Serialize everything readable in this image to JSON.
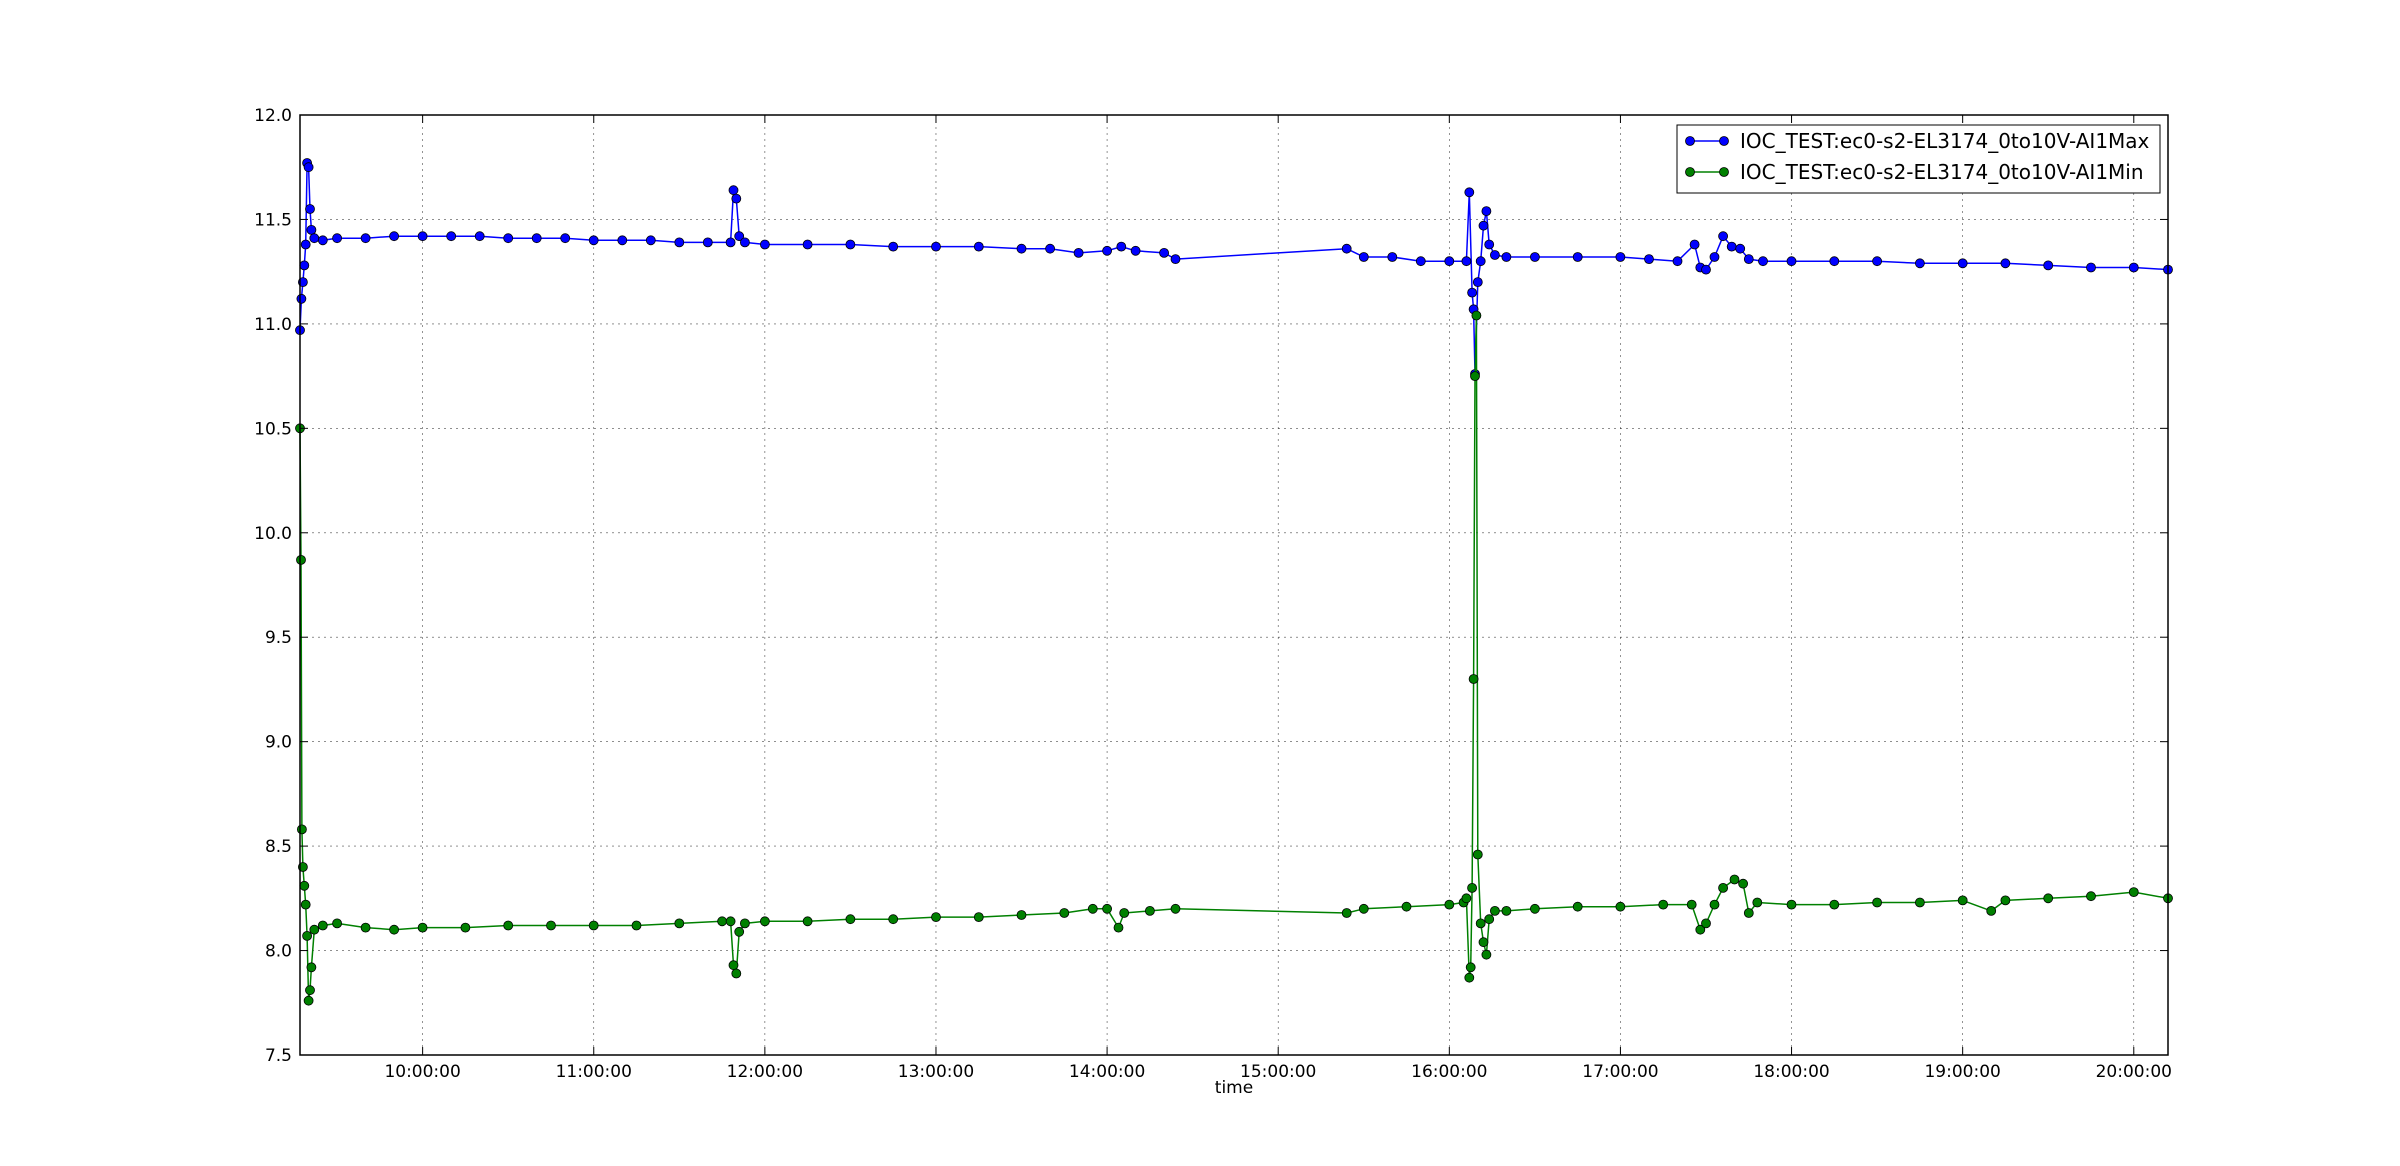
{
  "chart_data": {
    "type": "line",
    "title": "",
    "xlabel": "time",
    "ylabel": "",
    "grid": true,
    "legend_position": "top-right",
    "x_unit": "time of day",
    "xlim": [
      "09:17:00",
      "20:12:00"
    ],
    "ylim": [
      7.5,
      12.0
    ],
    "x_ticks": [
      "10:00:00",
      "11:00:00",
      "12:00:00",
      "13:00:00",
      "14:00:00",
      "15:00:00",
      "16:00:00",
      "17:00:00",
      "18:00:00",
      "19:00:00",
      "20:00:00"
    ],
    "y_ticks": [
      "7.5",
      "8.0",
      "8.5",
      "9.0",
      "9.5",
      "10.0",
      "10.5",
      "11.0",
      "11.5",
      "12.0"
    ],
    "series": [
      {
        "name": "IOC_TEST:ec0-s2-EL3174_0to10V-AI1Max",
        "color": "#0000ff",
        "points": [
          [
            "09:17:00",
            10.97
          ],
          [
            "09:17:30",
            11.12
          ],
          [
            "09:18:00",
            11.2
          ],
          [
            "09:18:30",
            11.28
          ],
          [
            "09:19:00",
            11.38
          ],
          [
            "09:19:30",
            11.77
          ],
          [
            "09:20:00",
            11.75
          ],
          [
            "09:20:30",
            11.55
          ],
          [
            "09:21:00",
            11.45
          ],
          [
            "09:22:00",
            11.41
          ],
          [
            "09:25:00",
            11.4
          ],
          [
            "09:30:00",
            11.41
          ],
          [
            "09:40:00",
            11.41
          ],
          [
            "09:50:00",
            11.42
          ],
          [
            "10:00:00",
            11.42
          ],
          [
            "10:10:00",
            11.42
          ],
          [
            "10:20:00",
            11.42
          ],
          [
            "10:30:00",
            11.41
          ],
          [
            "10:40:00",
            11.41
          ],
          [
            "10:50:00",
            11.41
          ],
          [
            "11:00:00",
            11.4
          ],
          [
            "11:10:00",
            11.4
          ],
          [
            "11:20:00",
            11.4
          ],
          [
            "11:30:00",
            11.39
          ],
          [
            "11:40:00",
            11.39
          ],
          [
            "11:48:00",
            11.39
          ],
          [
            "11:49:00",
            11.64
          ],
          [
            "11:50:00",
            11.6
          ],
          [
            "11:51:00",
            11.42
          ],
          [
            "11:53:00",
            11.39
          ],
          [
            "12:00:00",
            11.38
          ],
          [
            "12:15:00",
            11.38
          ],
          [
            "12:30:00",
            11.38
          ],
          [
            "12:45:00",
            11.37
          ],
          [
            "13:00:00",
            11.37
          ],
          [
            "13:15:00",
            11.37
          ],
          [
            "13:30:00",
            11.36
          ],
          [
            "13:40:00",
            11.36
          ],
          [
            "13:50:00",
            11.34
          ],
          [
            "14:00:00",
            11.35
          ],
          [
            "14:05:00",
            11.37
          ],
          [
            "14:10:00",
            11.35
          ],
          [
            "14:20:00",
            11.34
          ],
          [
            "14:24:00",
            11.31
          ],
          [
            "15:24:00",
            11.36
          ],
          [
            "15:30:00",
            11.32
          ],
          [
            "15:40:00",
            11.32
          ],
          [
            "15:50:00",
            11.3
          ],
          [
            "16:00:00",
            11.3
          ],
          [
            "16:06:00",
            11.3
          ],
          [
            "16:07:00",
            11.63
          ],
          [
            "16:08:00",
            11.15
          ],
          [
            "16:08:30",
            11.07
          ],
          [
            "16:09:00",
            10.76
          ],
          [
            "16:10:00",
            11.2
          ],
          [
            "16:11:00",
            11.3
          ],
          [
            "16:12:00",
            11.47
          ],
          [
            "16:13:00",
            11.54
          ],
          [
            "16:14:00",
            11.38
          ],
          [
            "16:16:00",
            11.33
          ],
          [
            "16:20:00",
            11.32
          ],
          [
            "16:30:00",
            11.32
          ],
          [
            "16:45:00",
            11.32
          ],
          [
            "17:00:00",
            11.32
          ],
          [
            "17:10:00",
            11.31
          ],
          [
            "17:20:00",
            11.3
          ],
          [
            "17:26:00",
            11.38
          ],
          [
            "17:28:00",
            11.27
          ],
          [
            "17:30:00",
            11.26
          ],
          [
            "17:33:00",
            11.32
          ],
          [
            "17:36:00",
            11.42
          ],
          [
            "17:39:00",
            11.37
          ],
          [
            "17:42:00",
            11.36
          ],
          [
            "17:45:00",
            11.31
          ],
          [
            "17:50:00",
            11.3
          ],
          [
            "18:00:00",
            11.3
          ],
          [
            "18:15:00",
            11.3
          ],
          [
            "18:30:00",
            11.3
          ],
          [
            "18:45:00",
            11.29
          ],
          [
            "19:00:00",
            11.29
          ],
          [
            "19:15:00",
            11.29
          ],
          [
            "19:30:00",
            11.28
          ],
          [
            "19:45:00",
            11.27
          ],
          [
            "20:00:00",
            11.27
          ],
          [
            "20:12:00",
            11.26
          ]
        ]
      },
      {
        "name": "IOC_TEST:ec0-s2-EL3174_0to10V-AI1Min",
        "color": "#008000",
        "points": [
          [
            "09:17:00",
            10.5
          ],
          [
            "09:17:20",
            9.87
          ],
          [
            "09:17:40",
            8.58
          ],
          [
            "09:18:00",
            8.4
          ],
          [
            "09:18:30",
            8.31
          ],
          [
            "09:19:00",
            8.22
          ],
          [
            "09:19:30",
            8.07
          ],
          [
            "09:20:00",
            7.76
          ],
          [
            "09:20:30",
            7.81
          ],
          [
            "09:21:00",
            7.92
          ],
          [
            "09:22:00",
            8.1
          ],
          [
            "09:25:00",
            8.12
          ],
          [
            "09:30:00",
            8.13
          ],
          [
            "09:40:00",
            8.11
          ],
          [
            "09:50:00",
            8.1
          ],
          [
            "10:00:00",
            8.11
          ],
          [
            "10:15:00",
            8.11
          ],
          [
            "10:30:00",
            8.12
          ],
          [
            "10:45:00",
            8.12
          ],
          [
            "11:00:00",
            8.12
          ],
          [
            "11:15:00",
            8.12
          ],
          [
            "11:30:00",
            8.13
          ],
          [
            "11:45:00",
            8.14
          ],
          [
            "11:48:00",
            8.14
          ],
          [
            "11:49:00",
            7.93
          ],
          [
            "11:50:00",
            7.89
          ],
          [
            "11:51:00",
            8.09
          ],
          [
            "11:53:00",
            8.13
          ],
          [
            "12:00:00",
            8.14
          ],
          [
            "12:15:00",
            8.14
          ],
          [
            "12:30:00",
            8.15
          ],
          [
            "12:45:00",
            8.15
          ],
          [
            "13:00:00",
            8.16
          ],
          [
            "13:15:00",
            8.16
          ],
          [
            "13:30:00",
            8.17
          ],
          [
            "13:45:00",
            8.18
          ],
          [
            "13:55:00",
            8.2
          ],
          [
            "14:00:00",
            8.2
          ],
          [
            "14:04:00",
            8.11
          ],
          [
            "14:06:00",
            8.18
          ],
          [
            "14:15:00",
            8.19
          ],
          [
            "14:24:00",
            8.2
          ],
          [
            "15:24:00",
            8.18
          ],
          [
            "15:30:00",
            8.2
          ],
          [
            "15:45:00",
            8.21
          ],
          [
            "16:00:00",
            8.22
          ],
          [
            "16:05:00",
            8.23
          ],
          [
            "16:06:00",
            8.25
          ],
          [
            "16:07:00",
            7.87
          ],
          [
            "16:07:30",
            7.92
          ],
          [
            "16:08:00",
            8.3
          ],
          [
            "16:08:30",
            9.3
          ],
          [
            "16:09:00",
            10.75
          ],
          [
            "16:09:30",
            11.04
          ],
          [
            "16:10:00",
            8.46
          ],
          [
            "16:11:00",
            8.13
          ],
          [
            "16:12:00",
            8.04
          ],
          [
            "16:13:00",
            7.98
          ],
          [
            "16:14:00",
            8.15
          ],
          [
            "16:16:00",
            8.19
          ],
          [
            "16:20:00",
            8.19
          ],
          [
            "16:30:00",
            8.2
          ],
          [
            "16:45:00",
            8.21
          ],
          [
            "17:00:00",
            8.21
          ],
          [
            "17:15:00",
            8.22
          ],
          [
            "17:25:00",
            8.22
          ],
          [
            "17:28:00",
            8.1
          ],
          [
            "17:30:00",
            8.13
          ],
          [
            "17:33:00",
            8.22
          ],
          [
            "17:36:00",
            8.3
          ],
          [
            "17:40:00",
            8.34
          ],
          [
            "17:43:00",
            8.32
          ],
          [
            "17:45:00",
            8.18
          ],
          [
            "17:48:00",
            8.23
          ],
          [
            "18:00:00",
            8.22
          ],
          [
            "18:15:00",
            8.22
          ],
          [
            "18:30:00",
            8.23
          ],
          [
            "18:45:00",
            8.23
          ],
          [
            "19:00:00",
            8.24
          ],
          [
            "19:10:00",
            8.19
          ],
          [
            "19:15:00",
            8.24
          ],
          [
            "19:30:00",
            8.25
          ],
          [
            "19:45:00",
            8.26
          ],
          [
            "20:00:00",
            8.28
          ],
          [
            "20:12:00",
            8.25
          ]
        ]
      }
    ]
  }
}
